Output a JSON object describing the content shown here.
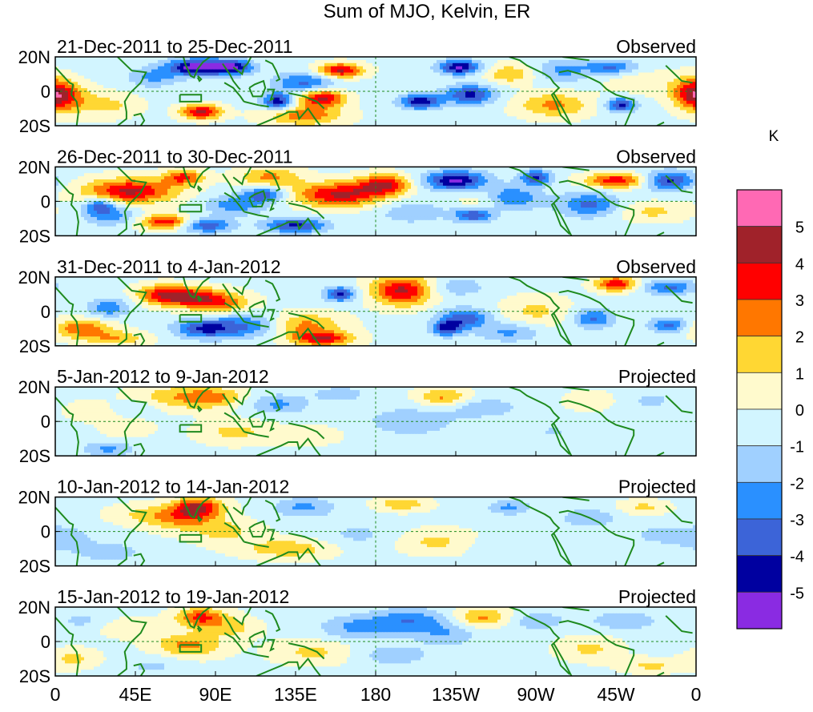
{
  "chart_data": {
    "type": "heatmap",
    "title": "Sum of MJO, Kelvin, ER",
    "unit_label": "K",
    "x_ticks": [
      "0",
      "45E",
      "90E",
      "135E",
      "180",
      "135W",
      "90W",
      "45W",
      "0"
    ],
    "x_range_deg": [
      0,
      360
    ],
    "y_ticks": [
      "20N",
      "0",
      "20S"
    ],
    "y_range_deg": [
      -20,
      20
    ],
    "panels": [
      {
        "period": "21-Dec-2011 to 25-Dec-2011",
        "status": "Observed",
        "blobs": [
          [
            160,
            12,
            4.5,
            9,
            3
          ],
          [
            150,
            -4,
            4.5,
            9,
            3.5
          ],
          [
            125,
            -6,
            -4.5,
            6,
            3.5
          ],
          [
            140,
            5,
            -3,
            12,
            4
          ],
          [
            80,
            14,
            -5.5,
            12,
            3.5
          ],
          [
            100,
            14,
            -4,
            8,
            3
          ],
          [
            82,
            -12,
            4.5,
            8,
            3
          ],
          [
            4,
            -4,
            3,
            10,
            6
          ],
          [
            205,
            -6,
            -4.5,
            8,
            3
          ],
          [
            233,
            -2,
            -4,
            10,
            4
          ],
          [
            227,
            14,
            -5,
            8,
            3
          ],
          [
            280,
            -8,
            2.5,
            14,
            5
          ],
          [
            318,
            -8,
            -4,
            6,
            3
          ],
          [
            312,
            14,
            -3,
            10,
            3
          ],
          [
            255,
            10,
            2,
            10,
            4
          ],
          [
            358,
            0,
            3,
            8,
            6
          ],
          [
            55,
            8,
            -2,
            10,
            4
          ],
          [
            30,
            -8,
            1.5,
            12,
            5
          ],
          [
            140,
            -14,
            3,
            15,
            4
          ],
          [
            285,
            12,
            -2,
            10,
            5
          ],
          [
            330,
            5,
            1,
            14,
            5
          ]
        ]
      },
      {
        "period": "26-Dec-2011 to 30-Dec-2011",
        "status": "Observed",
        "blobs": [
          [
            160,
            4,
            4.5,
            18,
            5
          ],
          [
            185,
            10,
            4,
            10,
            4
          ],
          [
            120,
            14,
            2.5,
            12,
            4
          ],
          [
            42,
            6,
            4.5,
            18,
            5
          ],
          [
            72,
            14,
            3.5,
            8,
            3
          ],
          [
            118,
            4,
            -3.5,
            8,
            3
          ],
          [
            102,
            -2,
            -2.5,
            12,
            4
          ],
          [
            25,
            -2,
            -3,
            6,
            3
          ],
          [
            30,
            -8,
            -2.5,
            10,
            4
          ],
          [
            62,
            -12,
            4,
            10,
            3
          ],
          [
            85,
            -14,
            -3.5,
            10,
            3
          ],
          [
            135,
            -14,
            -4,
            12,
            3
          ],
          [
            225,
            12,
            -5,
            12,
            4
          ],
          [
            235,
            -8,
            -4,
            8,
            3
          ],
          [
            255,
            2,
            -3,
            12,
            5
          ],
          [
            270,
            14,
            -4,
            6,
            3
          ],
          [
            300,
            -2,
            -3,
            12,
            5
          ],
          [
            315,
            12,
            4,
            12,
            3
          ],
          [
            345,
            12,
            -4,
            10,
            4
          ],
          [
            240,
            0,
            1.5,
            10,
            6
          ],
          [
            335,
            -6,
            1.5,
            14,
            4
          ],
          [
            200,
            -6,
            -1.5,
            14,
            5
          ]
        ]
      },
      {
        "period": "31-Dec-2011 to 4-Jan-2012",
        "status": "Observed",
        "blobs": [
          [
            195,
            12,
            4.5,
            12,
            6
          ],
          [
            78,
            8,
            4,
            14,
            4
          ],
          [
            60,
            10,
            3,
            10,
            4
          ],
          [
            95,
            4,
            2,
            12,
            4
          ],
          [
            85,
            -10,
            -4,
            12,
            4
          ],
          [
            30,
            2,
            -2.5,
            8,
            4
          ],
          [
            15,
            -10,
            3,
            12,
            4
          ],
          [
            35,
            -16,
            2,
            12,
            3
          ],
          [
            140,
            -8,
            2.5,
            15,
            5
          ],
          [
            150,
            -16,
            4,
            12,
            3
          ],
          [
            160,
            10,
            -4,
            6,
            3
          ],
          [
            110,
            -8,
            -2.5,
            12,
            5
          ],
          [
            230,
            -4,
            -3.5,
            10,
            4
          ],
          [
            220,
            -10,
            -4,
            6,
            3
          ],
          [
            315,
            16,
            4,
            8,
            3
          ],
          [
            302,
            -4,
            -3,
            8,
            4
          ],
          [
            345,
            14,
            -3,
            10,
            3
          ],
          [
            345,
            -8,
            -3,
            8,
            3
          ],
          [
            255,
            -12,
            -2,
            12,
            4
          ],
          [
            270,
            0,
            1.5,
            14,
            6
          ],
          [
            225,
            14,
            -1.5,
            12,
            4
          ]
        ]
      },
      {
        "period": "5-Jan-2012 to 9-Jan-2012",
        "status": "Projected",
        "blobs": [
          [
            70,
            14,
            2,
            18,
            5
          ],
          [
            90,
            14,
            1.8,
            12,
            4
          ],
          [
            100,
            -6,
            1.5,
            14,
            5
          ],
          [
            140,
            -8,
            1,
            15,
            4
          ],
          [
            125,
            10,
            -2,
            12,
            4
          ],
          [
            160,
            16,
            -1.5,
            10,
            3
          ],
          [
            218,
            14,
            2.5,
            10,
            4
          ],
          [
            200,
            0,
            -1.5,
            18,
            6
          ],
          [
            240,
            8,
            -1.5,
            14,
            4
          ],
          [
            300,
            12,
            1,
            10,
            4
          ],
          [
            30,
            -16,
            -2,
            10,
            3
          ],
          [
            40,
            -4,
            1,
            10,
            4
          ],
          [
            45,
            8,
            -1,
            10,
            3
          ],
          [
            335,
            12,
            -1,
            10,
            4
          ],
          [
            280,
            -6,
            -0.8,
            14,
            5
          ],
          [
            20,
            6,
            1,
            10,
            4
          ]
        ]
      },
      {
        "period": "10-Jan-2012 to 14-Jan-2012",
        "status": "Projected",
        "blobs": [
          [
            80,
            14,
            4,
            10,
            4
          ],
          [
            70,
            8,
            2.5,
            14,
            5
          ],
          [
            95,
            0,
            1.5,
            14,
            5
          ],
          [
            130,
            -10,
            2,
            18,
            4
          ],
          [
            140,
            14,
            -2,
            12,
            4
          ],
          [
            195,
            16,
            2,
            10,
            3
          ],
          [
            215,
            -6,
            1.5,
            16,
            5
          ],
          [
            170,
            -2,
            -1,
            14,
            5
          ],
          [
            255,
            14,
            -2,
            8,
            3
          ],
          [
            300,
            8,
            -1.5,
            12,
            4
          ],
          [
            330,
            14,
            1.5,
            10,
            3
          ],
          [
            5,
            -4,
            -1.5,
            10,
            5
          ],
          [
            30,
            -12,
            -1.5,
            12,
            4
          ],
          [
            45,
            10,
            1,
            12,
            4
          ],
          [
            250,
            -8,
            -0.8,
            14,
            4
          ],
          [
            340,
            -2,
            -1,
            14,
            5
          ]
        ]
      },
      {
        "period": "15-Jan-2012 to 19-Jan-2012",
        "status": "Projected",
        "blobs": [
          [
            82,
            14,
            3.5,
            10,
            4
          ],
          [
            75,
            -2,
            2.5,
            14,
            5
          ],
          [
            100,
            8,
            1.5,
            10,
            4
          ],
          [
            145,
            -6,
            1.5,
            16,
            5
          ],
          [
            170,
            8,
            -2,
            15,
            5
          ],
          [
            200,
            12,
            -2.5,
            15,
            5
          ],
          [
            190,
            -8,
            -1.5,
            14,
            4
          ],
          [
            220,
            4,
            -1.5,
            12,
            5
          ],
          [
            240,
            14,
            2.5,
            12,
            4
          ],
          [
            270,
            12,
            -1.5,
            12,
            4
          ],
          [
            300,
            -4,
            1.5,
            12,
            5
          ],
          [
            320,
            12,
            -1.5,
            14,
            4
          ],
          [
            10,
            -10,
            1.5,
            10,
            4
          ],
          [
            15,
            12,
            -1,
            10,
            4
          ],
          [
            40,
            8,
            1,
            12,
            4
          ],
          [
            55,
            -14,
            -1,
            12,
            4
          ],
          [
            335,
            -14,
            1.5,
            12,
            3
          ]
        ]
      }
    ],
    "colorbar": {
      "levels": [
        {
          "color": "#ff69b4"
        },
        {
          "color": "#a0222a"
        },
        {
          "color": "#ff0000"
        },
        {
          "color": "#ff7700"
        },
        {
          "color": "#ffd733"
        },
        {
          "color": "#fffacd"
        },
        {
          "color": "#d2f5ff"
        },
        {
          "color": "#a0d0ff"
        },
        {
          "color": "#2a90ff"
        },
        {
          "color": "#3c64d8"
        },
        {
          "color": "#0000a0"
        },
        {
          "color": "#8a2be2"
        }
      ],
      "labels": [
        "5",
        "4",
        "3",
        "2",
        "1",
        "0",
        "-1",
        "-2",
        "-3",
        "-4",
        "-5"
      ]
    }
  }
}
